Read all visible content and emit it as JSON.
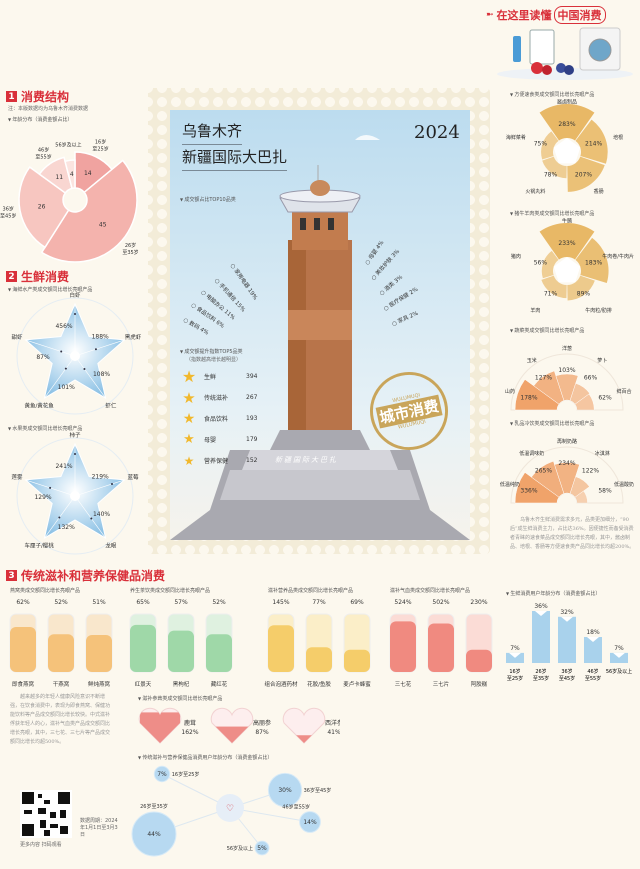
{
  "header": {
    "title_a": "在这里读懂",
    "title_b": "中国消费",
    "icon": "arrow-right-icon"
  },
  "section1": {
    "num": "1",
    "title": "消费结构",
    "note": "注：本版数据均为乌鲁木齐消费数据",
    "label": "年龄分布（消费金额占比）"
  },
  "section2": {
    "num": "2",
    "title": "生鲜消费",
    "seafood_label": "海鲜水产类成交额同比增长亮眼产品",
    "fruit_label": "水果类成交额同比增长亮眼产品"
  },
  "section3": {
    "num": "3",
    "title": "传统滋补和营养保健品消费",
    "paragraph": "越来越多的年轻人健康风险意识不断增强，在饮食消费中，表现为即食燕窝、保健功能饮料等产品成交额同比增长较快。中式滋补俘获年轻人的心，滋补气血类产品成交额同比增长亮眼，其中，三七花、三七片等产品成交额同比增长均超500%。",
    "qr_caption": "更多内容 扫码观看",
    "period": "数据周期：2024年1月1日至3月3日"
  },
  "stamp": {
    "city": "乌鲁木齐",
    "place": "新疆国际大巴扎",
    "year": "2024",
    "top10_label": "成交额占比TOP10品类",
    "top5_label": "成交额提升指数TOP5品类",
    "top5_note": "（指数越高增长越明显）",
    "seal_text": "城市消费",
    "seal_ring": "WULUMUQI",
    "base_sign": "新疆国际大巴扎"
  },
  "right": {
    "paragraph": "乌鲁木齐生鲜消费需求多元，品类更加细分，“90后”成生鲜消费主力，占比达36%。因便捷性而备受消费者青睐的速食菜品成交额同比增长亮眼，其中，酱卤制品、培根、香肠等方便速食类产品同比增长均超200%。"
  },
  "colors": {
    "accent": "#d9303a",
    "blue": "#8fc3e6",
    "gold": "#e8b866",
    "orange": "#f0a36a"
  },
  "chart_data": [
    {
      "id": "age",
      "type": "pie",
      "title": "年龄分布（消费金额占比）",
      "categories": [
        "16岁至25岁",
        "26岁至35岁",
        "36岁至45岁",
        "46岁至55岁",
        "56岁及以上"
      ],
      "values": [
        14,
        45,
        26,
        11,
        4
      ],
      "unit": "%"
    },
    {
      "id": "seafood",
      "type": "radar",
      "title": "海鲜水产类成交额同比增长亮眼产品",
      "categories": [
        "白虾",
        "黑虎虾",
        "虾仁",
        "黄鱼/黄花鱼",
        "甜虾"
      ],
      "values": [
        456,
        188,
        108,
        101,
        87
      ],
      "unit": "%"
    },
    {
      "id": "fruit",
      "type": "radar",
      "title": "水果类成交额同比增长亮眼产品",
      "categories": [
        "柿子",
        "蓝莓",
        "龙眼",
        "车厘子/樱桃",
        "莲雾"
      ],
      "values": [
        241,
        219,
        140,
        132,
        129
      ],
      "unit": "%"
    },
    {
      "id": "top10",
      "type": "bar",
      "title": "成交额占比TOP10品类",
      "categories": [
        "家用电器",
        "手机通信",
        "电脑办公",
        "食品饮料",
        "数码",
        "母婴",
        "美妆护肤",
        "酒类",
        "医疗保健",
        "家具"
      ],
      "values": [
        19,
        15,
        11,
        6,
        4,
        4,
        3,
        3,
        2,
        2
      ],
      "unit": "%"
    },
    {
      "id": "top5",
      "type": "table",
      "title": "成交额提升指数TOP5品类",
      "categories": [
        "生鲜",
        "传统滋补",
        "食品饮料",
        "母婴",
        "营养保健"
      ],
      "values": [
        394,
        267,
        193,
        179,
        152
      ]
    },
    {
      "id": "convenience",
      "type": "pie",
      "title": "方便速食类成交额同比增长亮眼产品",
      "categories": [
        "酱卤制品",
        "培根",
        "香肠",
        "火锅丸料",
        "海鲜菜肴"
      ],
      "values": [
        283,
        214,
        207,
        78,
        75
      ],
      "unit": "%"
    },
    {
      "id": "meat",
      "type": "pie",
      "title": "猪牛羊肉类成交额同比增长亮眼产品",
      "categories": [
        "牛腩",
        "牛肉卷/牛肉片",
        "牛肉粒/肋排",
        "羊肉",
        "猪肉"
      ],
      "values": [
        233,
        183,
        89,
        71,
        56
      ],
      "unit": "%"
    },
    {
      "id": "veg",
      "type": "pie",
      "title": "蔬菜类成交额同比增长亮眼产品",
      "categories": [
        "山药",
        "玉米",
        "洋葱",
        "萝卜",
        "鲜百合"
      ],
      "values": [
        178,
        127,
        103,
        66,
        62
      ],
      "unit": "%"
    },
    {
      "id": "dairy",
      "type": "pie",
      "title": "乳品冷饮类成交额同比增长亮眼产品",
      "categories": [
        "低温纯奶",
        "低温调味奶",
        "再制奶酪",
        "冰淇淋",
        "低温酸奶"
      ],
      "values": [
        336,
        265,
        234,
        122,
        58
      ],
      "unit": "%"
    },
    {
      "id": "birdnest",
      "type": "bar",
      "title": "燕窝类成交额同比增长亮眼产品",
      "categories": [
        "即食燕窝",
        "干燕窝",
        "鲜炖燕窝"
      ],
      "values": [
        62,
        52,
        51
      ],
      "unit": "%"
    },
    {
      "id": "tea",
      "type": "bar",
      "title": "养生茶饮类成交额同比增长亮眼产品",
      "categories": [
        "红景天",
        "黑枸杞",
        "藏红花"
      ],
      "values": [
        65,
        57,
        52
      ],
      "unit": "%"
    },
    {
      "id": "tonic",
      "type": "bar",
      "title": "滋补营养品类成交额同比增长亮眼产品",
      "categories": [
        "组合泡酒药材",
        "花胶/鱼胶",
        "麦卢卡蜂蜜"
      ],
      "values": [
        145,
        77,
        69
      ],
      "unit": "%"
    },
    {
      "id": "blood",
      "type": "bar",
      "title": "滋补气血类成交额同比增长亮眼产品",
      "categories": [
        "三七花",
        "三七片",
        "阿胶糕"
      ],
      "values": [
        524,
        502,
        230
      ],
      "unit": "%"
    },
    {
      "id": "fresh_age",
      "type": "bar",
      "title": "生鲜消费用户年龄分布（消费金额占比）",
      "categories": [
        "16岁至25岁",
        "26岁至35岁",
        "36岁至45岁",
        "46岁至55岁",
        "56岁及以上"
      ],
      "values": [
        7,
        36,
        32,
        18,
        7
      ],
      "unit": "%"
    },
    {
      "id": "ginseng",
      "type": "bar",
      "title": "滋补参茸类成交额同比增长亮眼产品",
      "categories": [
        "鹿茸",
        "高丽参",
        "西洋参"
      ],
      "values": [
        162,
        87,
        41
      ],
      "unit": "%"
    },
    {
      "id": "tonic_age",
      "type": "scatter",
      "title": "传统滋补与营养保健品消费用户年龄分布（消费金额占比）",
      "categories": [
        "16岁至25岁",
        "26岁至35岁",
        "36岁至45岁",
        "46岁至55岁",
        "56岁及以上"
      ],
      "values": [
        7,
        44,
        30,
        14,
        5
      ],
      "unit": "%"
    }
  ]
}
